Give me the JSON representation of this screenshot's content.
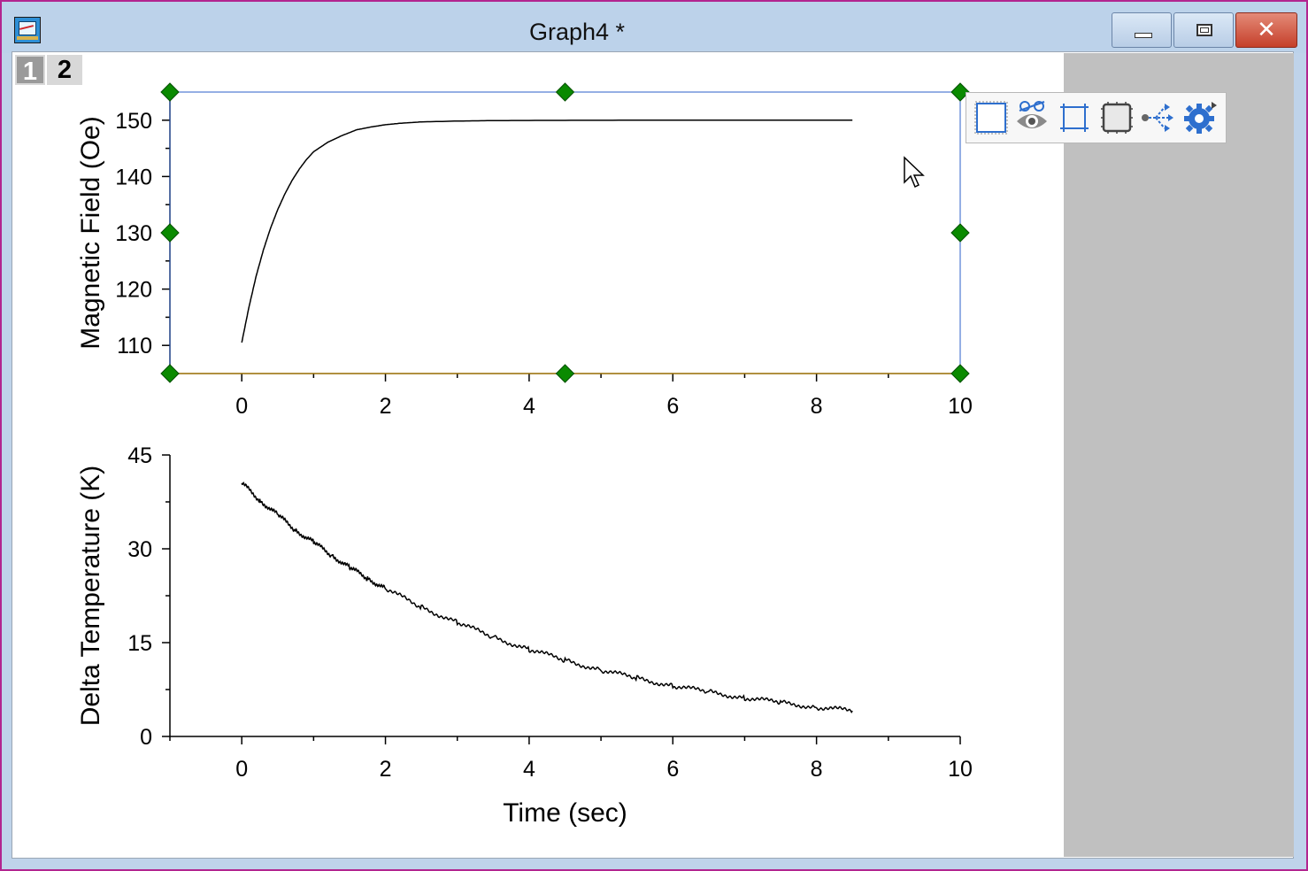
{
  "window": {
    "title": "Graph4 *",
    "close_glyph": "✕"
  },
  "layer_tabs": [
    {
      "label": "1",
      "active": false
    },
    {
      "label": "2",
      "active": true
    }
  ],
  "mini_toolbar": {
    "icons": [
      "frame-icon",
      "show-hide-icon",
      "layer-size-icon",
      "layer-frame-icon",
      "link-layers-icon",
      "settings-icon"
    ]
  },
  "colors": {
    "window_border": "#b2258f",
    "selection": "#2b5fc9",
    "handle": "#0a8a00",
    "gray_area": "#c0c0c0"
  },
  "chart_data": [
    {
      "type": "line",
      "title": "",
      "xlabel": "",
      "ylabel": "Magnetic Field (Oe)",
      "xlim": [
        -1,
        10
      ],
      "ylim": [
        105,
        155
      ],
      "xticks": [
        "0",
        "2",
        "4",
        "6",
        "8",
        "10"
      ],
      "yticks": [
        "110",
        "120",
        "130",
        "140",
        "150"
      ],
      "selected": true,
      "series": [
        {
          "x": [
            0,
            0.1,
            0.2,
            0.3,
            0.4,
            0.5,
            0.6,
            0.7,
            0.8,
            0.9,
            1.0,
            1.2,
            1.4,
            1.6,
            1.8,
            2.0,
            2.2,
            2.5,
            3.0,
            3.5,
            4.0,
            5.0,
            6.0,
            7.0,
            8.0,
            8.5
          ],
          "y": [
            110.5,
            116.8,
            122.3,
            126.9,
            130.8,
            134.1,
            136.9,
            139.3,
            141.3,
            143.0,
            144.4,
            146.1,
            147.3,
            148.3,
            148.8,
            149.2,
            149.45,
            149.7,
            149.85,
            149.93,
            149.96,
            149.99,
            150,
            150,
            150,
            150
          ]
        }
      ]
    },
    {
      "type": "line",
      "title": "",
      "xlabel": "Time (sec)",
      "ylabel": "Delta Temperature (K)",
      "xlim": [
        -1,
        10
      ],
      "ylim": [
        0,
        45
      ],
      "xticks": [
        "0",
        "2",
        "4",
        "6",
        "8",
        "10"
      ],
      "yticks": [
        "0",
        "15",
        "30",
        "45"
      ],
      "selected": false,
      "series": [
        {
          "x": [
            0,
            0.25,
            0.5,
            0.75,
            1.0,
            1.25,
            1.5,
            1.75,
            2.0,
            2.5,
            3.0,
            3.5,
            4.0,
            4.5,
            5.0,
            5.5,
            6.0,
            6.5,
            7.0,
            7.5,
            8.0,
            8.5
          ],
          "y": [
            40.5,
            37.8,
            35.4,
            33.0,
            31.0,
            29.0,
            27.0,
            25.3,
            23.6,
            20.7,
            18.2,
            15.9,
            13.9,
            12.2,
            10.6,
            9.3,
            8.1,
            7.1,
            6.2,
            5.4,
            4.7,
            4.1
          ]
        }
      ]
    }
  ]
}
